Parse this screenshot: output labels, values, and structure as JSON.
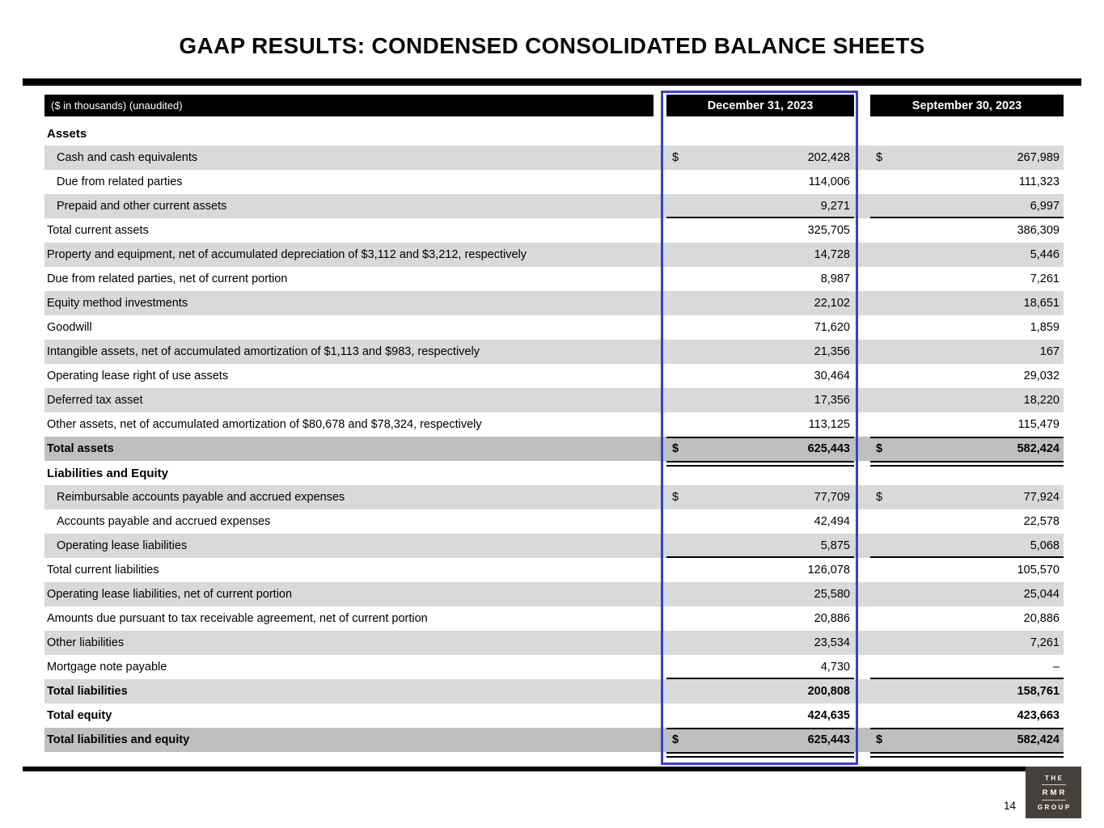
{
  "slide": {
    "title": "GAAP RESULTS: CONDENSED CONSOLIDATED BALANCE SHEETS",
    "page_number": "14"
  },
  "table": {
    "unit_note": "($ in thousands) (unaudited)",
    "columns": [
      "December 31, 2023",
      "September 30, 2023"
    ],
    "highlighted_column": "December 31, 2023",
    "highlight_color": "#3d3dd4",
    "rows": [
      {
        "label": "Assets",
        "type": "section"
      },
      {
        "label": "Cash and cash equivalents",
        "dec": "202,428",
        "sep": "267,989",
        "shade": "gray",
        "indent": true,
        "dollar": true
      },
      {
        "label": "Due from related parties",
        "dec": "114,006",
        "sep": "111,323",
        "shade": "white",
        "indent": true
      },
      {
        "label": "Prepaid and other current assets",
        "dec": "9,271",
        "sep": "6,997",
        "shade": "gray",
        "indent": true,
        "rule": "bottom"
      },
      {
        "label": "Total current assets",
        "dec": "325,705",
        "sep": "386,309",
        "shade": "white"
      },
      {
        "label": "Property and equipment, net of accumulated depreciation of $3,112 and $3,212, respectively",
        "dec": "14,728",
        "sep": "5,446",
        "shade": "gray"
      },
      {
        "label": "Due from related parties, net of current portion",
        "dec": "8,987",
        "sep": "7,261",
        "shade": "white"
      },
      {
        "label": "Equity method investments",
        "dec": "22,102",
        "sep": "18,651",
        "shade": "gray"
      },
      {
        "label": "Goodwill",
        "dec": "71,620",
        "sep": "1,859",
        "shade": "white"
      },
      {
        "label": "Intangible assets, net of accumulated amortization of $1,113 and $983, respectively",
        "dec": "21,356",
        "sep": "167",
        "shade": "gray"
      },
      {
        "label": "Operating lease right of use assets",
        "dec": "30,464",
        "sep": "29,032",
        "shade": "white"
      },
      {
        "label": "Deferred tax asset",
        "dec": "17,356",
        "sep": "18,220",
        "shade": "gray"
      },
      {
        "label": "Other assets, net of accumulated amortization of $80,678 and $78,324, respectively",
        "dec": "113,125",
        "sep": "115,479",
        "shade": "white"
      },
      {
        "label": "Total assets",
        "dec": "625,443",
        "sep": "582,424",
        "shade": "dark",
        "bold": true,
        "dollar": true,
        "rule": "top-double"
      },
      {
        "label": "Liabilities and Equity",
        "type": "section"
      },
      {
        "label": "Reimbursable accounts payable and accrued expenses",
        "dec": "77,709",
        "sep": "77,924",
        "shade": "gray",
        "indent": true,
        "dollar": true
      },
      {
        "label": "Accounts payable and accrued expenses",
        "dec": "42,494",
        "sep": "22,578",
        "shade": "white",
        "indent": true
      },
      {
        "label": "Operating lease liabilities",
        "dec": "5,875",
        "sep": "5,068",
        "shade": "gray",
        "indent": true,
        "rule": "bottom"
      },
      {
        "label": "Total current liabilities",
        "dec": "126,078",
        "sep": "105,570",
        "shade": "white"
      },
      {
        "label": "Operating lease liabilities, net of current portion",
        "dec": "25,580",
        "sep": "25,044",
        "shade": "gray"
      },
      {
        "label": "Amounts due pursuant to tax receivable agreement, net of current portion",
        "dec": "20,886",
        "sep": "20,886",
        "shade": "white"
      },
      {
        "label": "Other liabilities",
        "dec": "23,534",
        "sep": "7,261",
        "shade": "gray"
      },
      {
        "label": "Mortgage note payable",
        "dec": "4,730",
        "sep": "–",
        "shade": "white",
        "rule": "bottom"
      },
      {
        "label": "Total liabilities",
        "dec": "200,808",
        "sep": "158,761",
        "shade": "gray",
        "bold": true
      },
      {
        "label": "Total equity",
        "dec": "424,635",
        "sep": "423,663",
        "shade": "white",
        "bold": true
      },
      {
        "label": "Total liabilities and equity",
        "dec": "625,443",
        "sep": "582,424",
        "shade": "dark",
        "bold": true,
        "dollar": true,
        "rule": "top-double"
      }
    ]
  },
  "logo": {
    "lines": [
      "THE",
      "RMR",
      "GROUP"
    ],
    "bg_color": "#45403c"
  },
  "colors": {
    "row_gray": "#d9d9d9",
    "total_gray": "#bfbfbf",
    "header_black": "#000000"
  }
}
